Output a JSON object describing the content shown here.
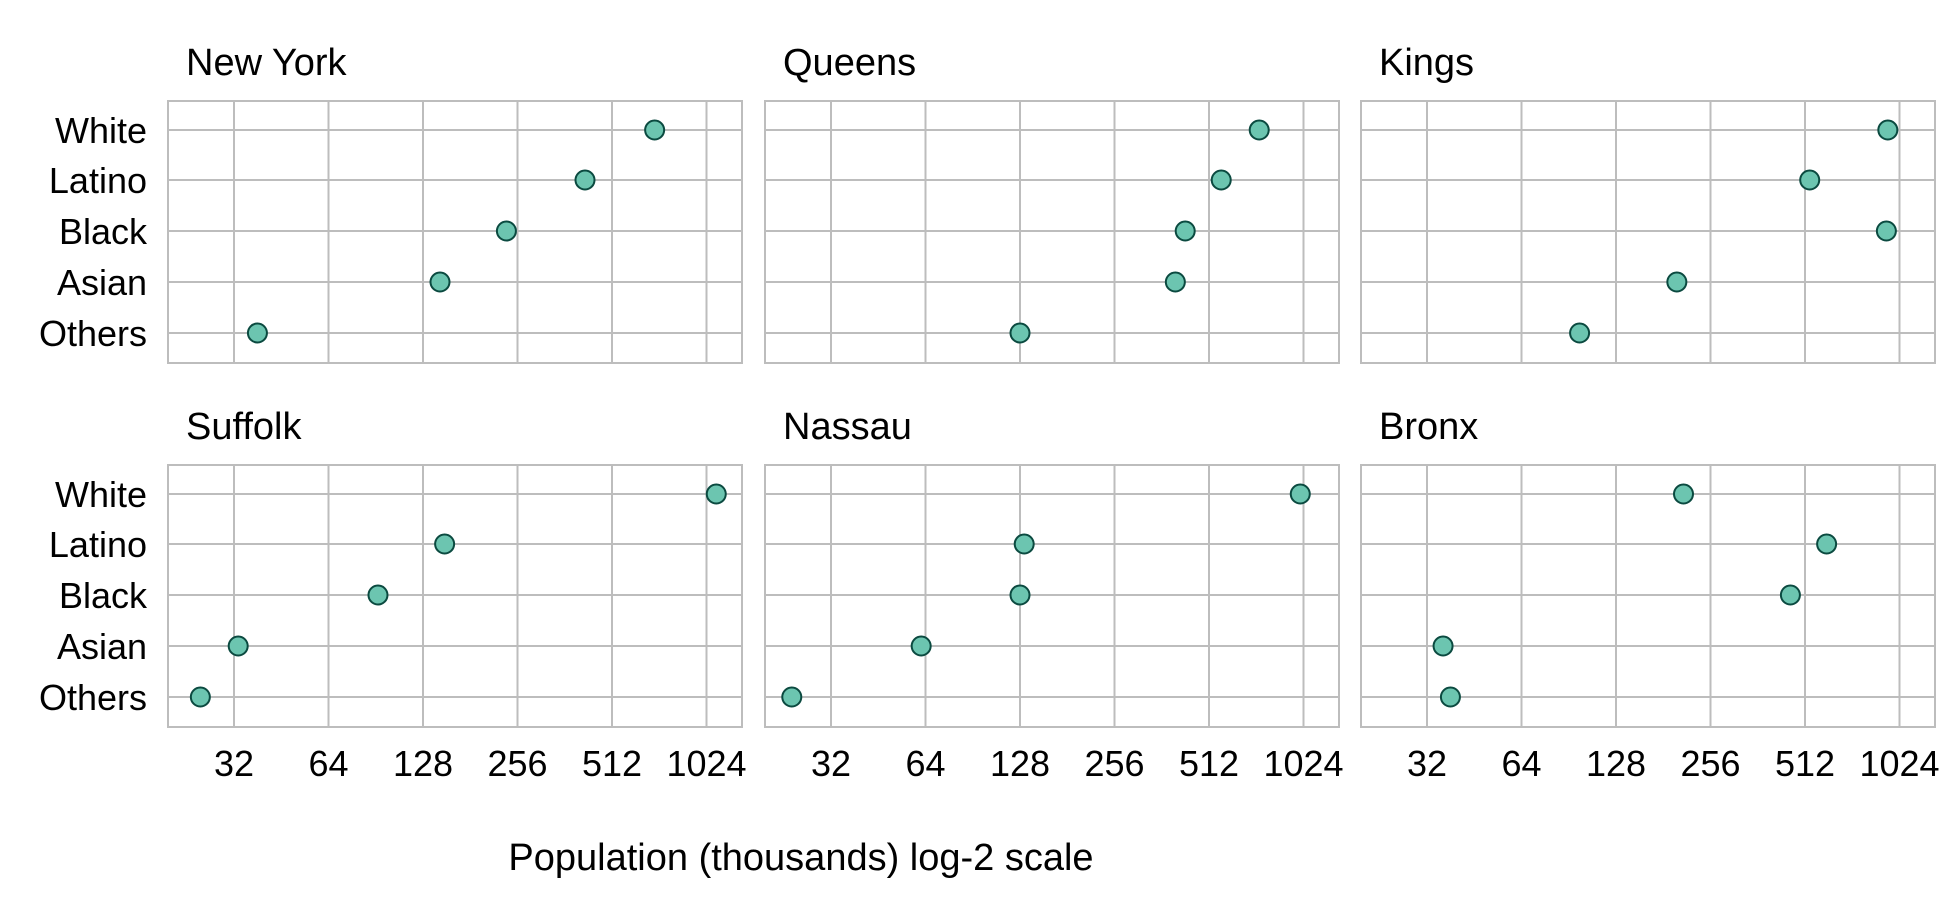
{
  "chart_data": {
    "type": "scatter",
    "xlabel": "Population (thousands) log-2 scale",
    "x_scale": "log2",
    "xlim": [
      20,
      1200
    ],
    "x_ticks": [
      32,
      64,
      128,
      256,
      512,
      1024
    ],
    "x_tick_labels": [
      "32",
      "64",
      "128",
      "256",
      "512",
      "1024"
    ],
    "categories": [
      "White",
      "Latino",
      "Black",
      "Asian",
      "Others"
    ],
    "grid": true,
    "point_color": "#6cc5b0",
    "point_edge_color": "#0b4a40",
    "panels": [
      {
        "title": "New York",
        "values": [
          700,
          420,
          236,
          145,
          38
        ]
      },
      {
        "title": "Queens",
        "values": [
          740,
          560,
          430,
          400,
          128
        ]
      },
      {
        "title": "Kings",
        "values": [
          940,
          530,
          930,
          200,
          98
        ]
      },
      {
        "title": "Suffolk",
        "values": [
          1100,
          150,
          92,
          33,
          25
        ]
      },
      {
        "title": "Nassau",
        "values": [
          1000,
          132,
          128,
          62,
          24
        ]
      },
      {
        "title": "Bronx",
        "values": [
          210,
          600,
          460,
          36,
          38
        ]
      }
    ]
  }
}
